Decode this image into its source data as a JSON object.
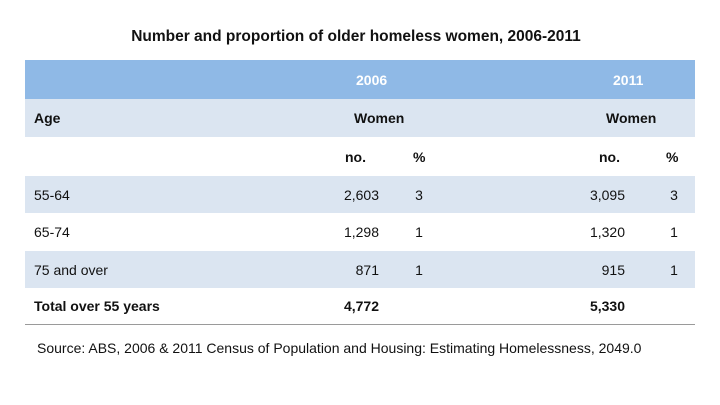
{
  "chart_data": {
    "type": "table",
    "title": "Number and proportion of older homeless women, 2006-2011",
    "header": {
      "years": [
        "2006",
        "2011"
      ],
      "age_label": "Age",
      "group_label": "Women",
      "no_label": "no.",
      "pct_label": "%"
    },
    "rows": [
      {
        "age": "55-64",
        "no_2006": "2,603",
        "pct_2006": "3",
        "no_2011": "3,095",
        "pct_2011": "3"
      },
      {
        "age": "65-74",
        "no_2006": "1,298",
        "pct_2006": "1",
        "no_2011": "1,320",
        "pct_2011": "1"
      },
      {
        "age": "75 and over",
        "no_2006": "871",
        "pct_2006": "1",
        "no_2011": "915",
        "pct_2011": "1"
      }
    ],
    "total": {
      "label": "Total over 55 years",
      "no_2006": "4,772",
      "no_2011": "5,330"
    },
    "source": "Source: ABS, 2006 & 2011 Census of Population and Housing: Estimating Homelessness, 2049.0"
  },
  "colors": {
    "header_band": "#8fb9e6",
    "shaded_row": "#dbe5f1",
    "rule": "#9a9a9a"
  }
}
